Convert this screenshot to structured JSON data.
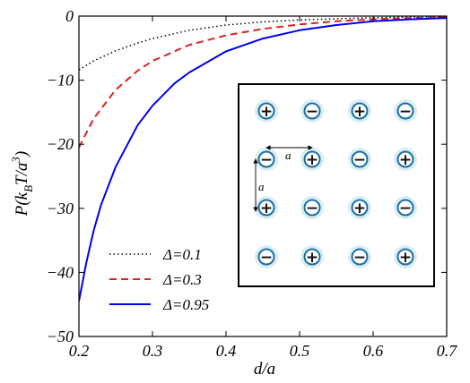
{
  "chart_data": {
    "type": "line",
    "xlabel": "d/a",
    "ylabel": "P(k_BT/a^3)",
    "xlim": [
      0.2,
      0.7
    ],
    "ylim": [
      -50,
      0
    ],
    "x_ticks": [
      0.2,
      0.3,
      0.4,
      0.5,
      0.6,
      0.7
    ],
    "y_ticks": [
      0,
      -10,
      -20,
      -30,
      -40,
      -50
    ],
    "x_tick_labels": [
      "0.2",
      "0.3",
      "0.4",
      "0.5",
      "0.6",
      "0.7"
    ],
    "y_tick_labels": [
      "0",
      "−10",
      "−20",
      "−30",
      "−40",
      "−50"
    ],
    "grid": false,
    "legend_position": "bottom-left",
    "series": [
      {
        "name": "Δ=0.1",
        "style": "dotted",
        "color": "#000000",
        "x": [
          0.2,
          0.22,
          0.25,
          0.28,
          0.3,
          0.35,
          0.4,
          0.45,
          0.5,
          0.55,
          0.6,
          0.65,
          0.7
        ],
        "y": [
          -8.4,
          -7.0,
          -5.4,
          -4.2,
          -3.5,
          -2.2,
          -1.4,
          -0.9,
          -0.6,
          -0.4,
          -0.25,
          -0.15,
          -0.1
        ]
      },
      {
        "name": "Δ=0.3",
        "style": "dashed",
        "color": "#dd2222",
        "x": [
          0.2,
          0.22,
          0.25,
          0.28,
          0.3,
          0.35,
          0.4,
          0.45,
          0.5,
          0.55,
          0.6,
          0.65,
          0.7
        ],
        "y": [
          -20.5,
          -16.0,
          -11.5,
          -8.5,
          -7.0,
          -4.5,
          -3.0,
          -2.0,
          -1.3,
          -0.8,
          -0.5,
          -0.3,
          -0.2
        ]
      },
      {
        "name": "Δ=0.95",
        "style": "solid",
        "color": "#0000ee",
        "x": [
          0.2,
          0.21,
          0.22,
          0.23,
          0.25,
          0.28,
          0.3,
          0.33,
          0.35,
          0.4,
          0.45,
          0.5,
          0.55,
          0.6,
          0.65,
          0.7
        ],
        "y": [
          -44.5,
          -38.5,
          -33.5,
          -29.5,
          -23.5,
          -17.0,
          -14.0,
          -10.5,
          -8.8,
          -5.5,
          -3.5,
          -2.2,
          -1.4,
          -0.8,
          -0.5,
          -0.3
        ]
      }
    ],
    "inset": {
      "grid_rows": [
        [
          "+",
          "−",
          "+",
          "−"
        ],
        [
          "−",
          "+",
          "−",
          "+"
        ],
        [
          "+",
          "−",
          "+",
          "−"
        ],
        [
          "−",
          "+",
          "−",
          "+"
        ]
      ],
      "spacing_label_horizontal": "a",
      "spacing_label_vertical": "a"
    }
  },
  "colors": {
    "charge_ring": "#1a6fa0",
    "charge_glow": "#cfe8f3",
    "axes": "#000000"
  }
}
